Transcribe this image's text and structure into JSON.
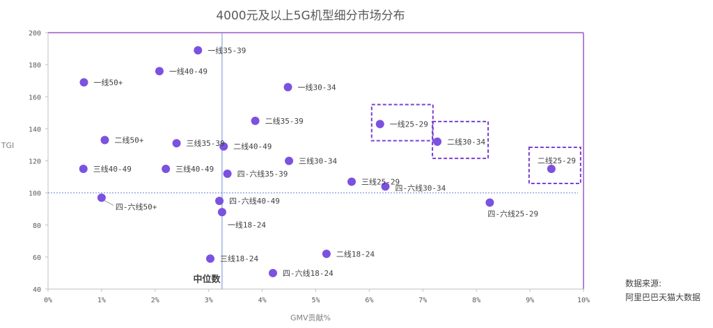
{
  "chart_data": {
    "type": "scatter",
    "title": "4000元及以上5G机型细分市场分布",
    "xlabel": "GMV贡献%",
    "ylabel": "TGI",
    "xlim": [
      0,
      10
    ],
    "ylim": [
      40,
      200
    ],
    "xticks": [
      "0%",
      "1%",
      "2%",
      "3%",
      "4%",
      "5%",
      "6%",
      "7%",
      "8%",
      "9%",
      "10%"
    ],
    "yticks": [
      "40",
      "60",
      "80",
      "100",
      "120",
      "140",
      "160",
      "180",
      "200"
    ],
    "median_x": 3.25,
    "median_label": "中位数",
    "reference_y": 100,
    "point_color": "#7b52e0",
    "frame_color": "#9b59c9",
    "highlight_color": "#7b3fd0",
    "points": [
      {
        "label": "一线35-39",
        "x": 2.8,
        "y": 189
      },
      {
        "label": "一线40-49",
        "x": 2.08,
        "y": 176
      },
      {
        "label": "一线50+",
        "x": 0.67,
        "y": 169
      },
      {
        "label": "一线30-34",
        "x": 4.48,
        "y": 166
      },
      {
        "label": "二线35-39",
        "x": 3.87,
        "y": 145
      },
      {
        "label": "一线25-29",
        "x": 6.2,
        "y": 143,
        "highlight": true
      },
      {
        "label": "二线50+",
        "x": 1.06,
        "y": 133
      },
      {
        "label": "三线35-39",
        "x": 2.4,
        "y": 131
      },
      {
        "label": "二线40-49",
        "x": 3.28,
        "y": 129
      },
      {
        "label": "二线30-34",
        "x": 7.27,
        "y": 132,
        "highlight": true
      },
      {
        "label": "三线30-34",
        "x": 4.5,
        "y": 120
      },
      {
        "label": "三线40-49",
        "x": 0.66,
        "y": 115
      },
      {
        "label": "三线40-49",
        "x": 2.2,
        "y": 115
      },
      {
        "label": "四-六线35-39",
        "x": 3.35,
        "y": 112
      },
      {
        "label": "二线25-29",
        "x": 9.4,
        "y": 115,
        "highlight": true
      },
      {
        "label": "三线25-29",
        "x": 5.67,
        "y": 107
      },
      {
        "label": "四-六线30-34",
        "x": 6.3,
        "y": 104
      },
      {
        "label": "四-六线50+",
        "x": 1.0,
        "y": 97
      },
      {
        "label": "四-六线40-49",
        "x": 3.2,
        "y": 95
      },
      {
        "label": "四-六线25-29",
        "x": 8.25,
        "y": 94
      },
      {
        "label": "一线18-24",
        "x": 3.25,
        "y": 88
      },
      {
        "label": "二线18-24",
        "x": 5.2,
        "y": 62
      },
      {
        "label": "三线18-24",
        "x": 3.03,
        "y": 59
      },
      {
        "label": "四-六线18-24",
        "x": 4.2,
        "y": 50
      }
    ]
  },
  "source": {
    "line1": "数据来源:",
    "line2": "阿里巴巴天猫大数据"
  }
}
